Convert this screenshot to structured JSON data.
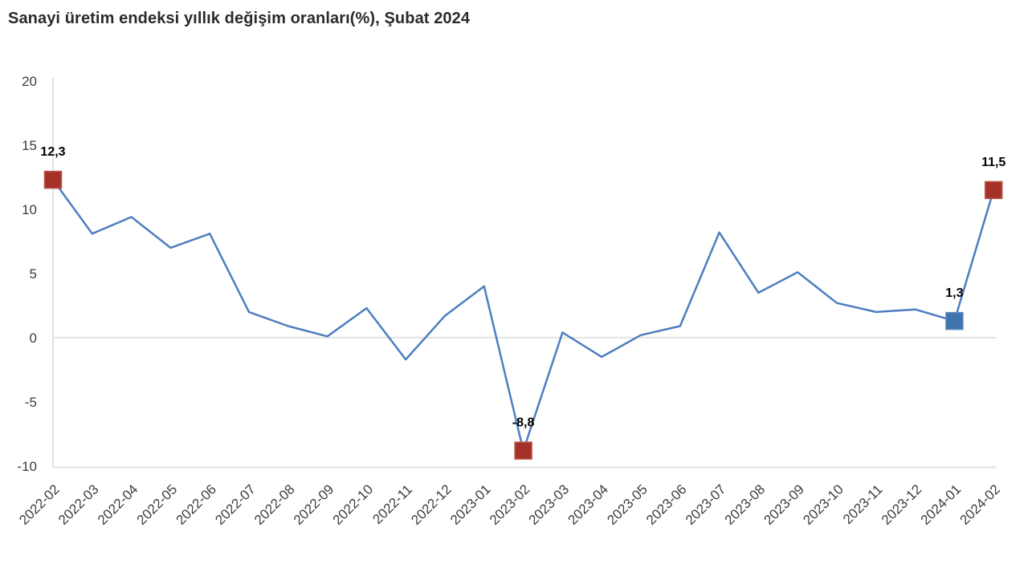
{
  "page": {
    "title": "Sanayi üretim endeksi yıllık değişim oranları(%), Şubat 2024"
  },
  "chart_data": {
    "type": "line",
    "title": "Sanayi üretim endeksi yıllık değişim oranları(%), Şubat 2024",
    "xlabel": "",
    "ylabel": "",
    "ylim": [
      -10,
      20
    ],
    "yticks": [
      20,
      15,
      10,
      5,
      0,
      -5,
      -10
    ],
    "grid": "horizontal gridline at 0 and at chart bottom (-10) only; light gray vertical axis line on left",
    "legend": "none",
    "categories": [
      "2022-02",
      "2022-03",
      "2022-04",
      "2022-05",
      "2022-06",
      "2022-07",
      "2022-08",
      "2022-09",
      "2022-10",
      "2022-11",
      "2022-12",
      "2023-01",
      "2023-02",
      "2023-03",
      "2023-04",
      "2023-05",
      "2023-06",
      "2023-07",
      "2023-08",
      "2023-09",
      "2023-10",
      "2023-11",
      "2023-12",
      "2024-01",
      "2024-02"
    ],
    "values": [
      12.3,
      8.1,
      9.4,
      7.0,
      8.1,
      2.0,
      0.9,
      0.1,
      2.3,
      -1.7,
      1.7,
      4.0,
      -8.8,
      0.4,
      -1.5,
      0.2,
      0.9,
      8.2,
      3.5,
      5.1,
      2.7,
      2.0,
      2.2,
      1.3,
      11.5
    ],
    "labeled_points": [
      {
        "index": 0,
        "category": "2022-02",
        "value": 12.3,
        "label": "12,3",
        "marker_color": "#a53228",
        "marker_edge": "#b9554a"
      },
      {
        "index": 12,
        "category": "2023-02",
        "value": -8.8,
        "label": "-8,8",
        "marker_color": "#a53228",
        "marker_edge": "#b9554a"
      },
      {
        "index": 23,
        "category": "2024-01",
        "value": 1.3,
        "label": "1,3",
        "marker_color": "#3f74ad",
        "marker_edge": "#5c8abc"
      },
      {
        "index": 24,
        "category": "2024-02",
        "value": 11.5,
        "label": "11,5",
        "marker_color": "#a53228",
        "marker_edge": "#b9554a"
      }
    ],
    "colors": {
      "line": "#4d7ebf",
      "marker_red": "#a53228",
      "marker_blue": "#3f74ad",
      "grid": "#e2e2e2",
      "axis_text": "#3d3d3d",
      "title_text": "#2b2b2b",
      "data_label_text": "#000000",
      "background": "#ffffff"
    }
  }
}
